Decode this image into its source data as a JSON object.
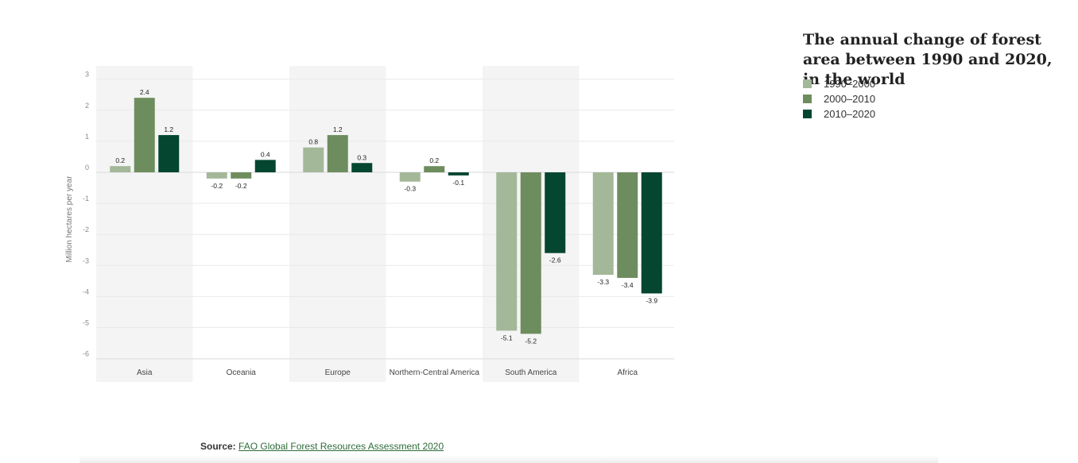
{
  "title": "The annual change of forest area between 1990 and 2020, in the world",
  "legend": [
    {
      "label": "1990–2000",
      "color": "#a3b899"
    },
    {
      "label": "2000–2010",
      "color": "#6e8d5f"
    },
    {
      "label": "2010–2020",
      "color": "#044630"
    }
  ],
  "source": {
    "prefix": "Source:",
    "link_text": "FAO Global Forest Resources Assessment 2020"
  },
  "chart_data": {
    "type": "bar",
    "title": "The annual change of forest area between 1990 and 2020, in the world",
    "xlabel": "",
    "ylabel": "Million hectares per year",
    "ylim": [
      -6,
      3
    ],
    "yticks": [
      3,
      2,
      1,
      0,
      -1,
      -2,
      -3,
      -4,
      -5,
      -6
    ],
    "categories": [
      "Asia",
      "Oceania",
      "Europe",
      "Northern-Central America",
      "South America",
      "Africa"
    ],
    "series": [
      {
        "name": "1990–2000",
        "color": "#a3b899",
        "values": [
          0.2,
          -0.2,
          0.8,
          -0.3,
          -5.1,
          -3.3
        ]
      },
      {
        "name": "2000–2010",
        "color": "#6e8d5f",
        "values": [
          2.4,
          -0.2,
          1.2,
          0.2,
          -5.2,
          -3.4
        ]
      },
      {
        "name": "2010–2020",
        "color": "#044630",
        "values": [
          1.2,
          0.4,
          0.3,
          -0.1,
          -2.6,
          -3.9
        ]
      }
    ],
    "shaded_categories": [
      "Asia",
      "Europe",
      "South America"
    ],
    "grid": true,
    "legend_position": "top-right"
  }
}
